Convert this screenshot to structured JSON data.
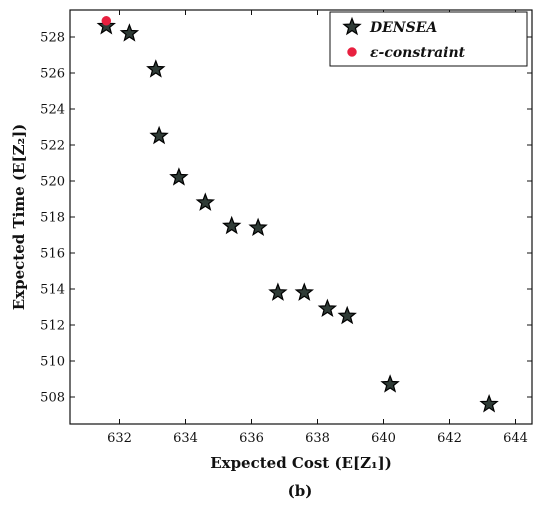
{
  "chart_data": {
    "type": "scatter",
    "xlabel": "Expected Cost (E[Z₁])",
    "ylabel": "Expected Time (E[Z₂])",
    "caption": "(b)",
    "xlim": [
      630.5,
      644.5
    ],
    "ylim": [
      506.5,
      529.5
    ],
    "x_ticks": [
      632,
      634,
      636,
      638,
      640,
      642,
      644
    ],
    "y_ticks": [
      508,
      510,
      512,
      514,
      516,
      518,
      520,
      522,
      524,
      526,
      528
    ],
    "grid": false,
    "legend_position": "top-right",
    "series": [
      {
        "name": "DENSEA",
        "marker": "star",
        "color": "#2f3b36",
        "points": [
          [
            631.6,
            528.6
          ],
          [
            632.3,
            528.2
          ],
          [
            633.1,
            526.2
          ],
          [
            633.2,
            522.5
          ],
          [
            633.8,
            520.2
          ],
          [
            634.6,
            518.8
          ],
          [
            635.4,
            517.5
          ],
          [
            636.2,
            517.4
          ],
          [
            636.8,
            513.8
          ],
          [
            637.6,
            513.8
          ],
          [
            638.3,
            512.9
          ],
          [
            638.9,
            512.5
          ],
          [
            640.2,
            508.7
          ],
          [
            643.2,
            507.6
          ]
        ]
      },
      {
        "name": "ε-constraint",
        "marker": "circle",
        "color": "#e8203f",
        "points": [
          [
            631.6,
            528.9
          ]
        ]
      }
    ]
  }
}
